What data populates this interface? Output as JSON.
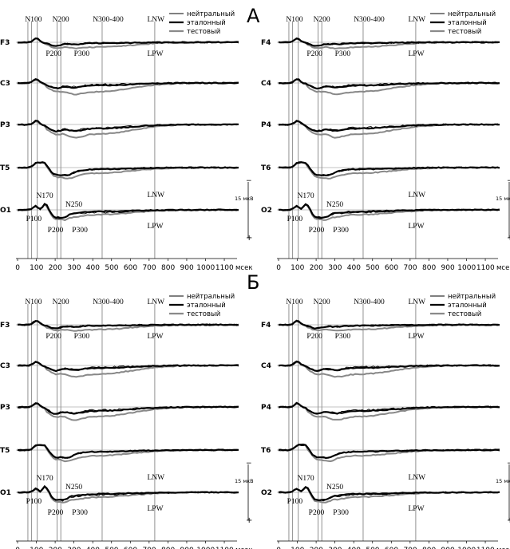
{
  "panel_labels": [
    "А",
    "Б"
  ],
  "legend_items": [
    {
      "label": "нейтральный",
      "color": "#000000",
      "weight": "thin"
    },
    {
      "label": "эталонный",
      "color": "#000000",
      "weight": "thick"
    },
    {
      "label": "тестовый",
      "color": "#8a8a8a",
      "weight": "thick"
    }
  ],
  "scale_label": "15 мкВ",
  "scale_signs": {
    "minus": "−",
    "plus": "+"
  },
  "x_unit": "мсек",
  "x_ticks": [
    0,
    100,
    200,
    300,
    400,
    500,
    600,
    700,
    800,
    900,
    1000,
    1100
  ],
  "components_top": [
    "N100",
    "N200",
    "N300-400",
    "LNW"
  ],
  "components_bottom": [
    "P200",
    "P300",
    "LPW"
  ],
  "occipital_labels": {
    "n170": "N170",
    "n250": "N250",
    "lnw": "LNW",
    "p100": "P100",
    "p200": "P200",
    "p300": "P300",
    "lpw": "LPW"
  },
  "chart_data": [
    {
      "id": "A-left",
      "type": "line",
      "panel": "А",
      "hemisphere": "left",
      "channels": [
        "F3",
        "C3",
        "P3",
        "T5",
        "O1"
      ],
      "x_unit": "мсек",
      "xlim": [
        0,
        1150
      ],
      "series": [
        {
          "name": "нейтральный"
        },
        {
          "name": "эталонный"
        },
        {
          "name": "тестовый"
        }
      ]
    },
    {
      "id": "A-right",
      "type": "line",
      "panel": "А",
      "hemisphere": "right",
      "channels": [
        "F4",
        "C4",
        "P4",
        "T6",
        "O2"
      ],
      "x_unit": "мсек",
      "xlim": [
        0,
        1150
      ],
      "series": [
        {
          "name": "нейтральный"
        },
        {
          "name": "эталонный"
        },
        {
          "name": "тестовый"
        }
      ]
    },
    {
      "id": "B-left",
      "type": "line",
      "panel": "Б",
      "hemisphere": "left",
      "channels": [
        "F3",
        "C3",
        "P3",
        "T5",
        "O1"
      ],
      "x_unit": "мсек",
      "xlim": [
        0,
        1150
      ],
      "series": [
        {
          "name": "нейтральный"
        },
        {
          "name": "эталонный"
        },
        {
          "name": "тестовый"
        }
      ]
    },
    {
      "id": "B-right",
      "type": "line",
      "panel": "Б",
      "hemisphere": "right",
      "channels": [
        "F4",
        "C4",
        "P4",
        "T6",
        "O2"
      ],
      "x_unit": "мсек",
      "xlim": [
        0,
        1150
      ],
      "series": [
        {
          "name": "нейтральный"
        },
        {
          "name": "эталонный"
        },
        {
          "name": "тестовый"
        }
      ]
    }
  ]
}
